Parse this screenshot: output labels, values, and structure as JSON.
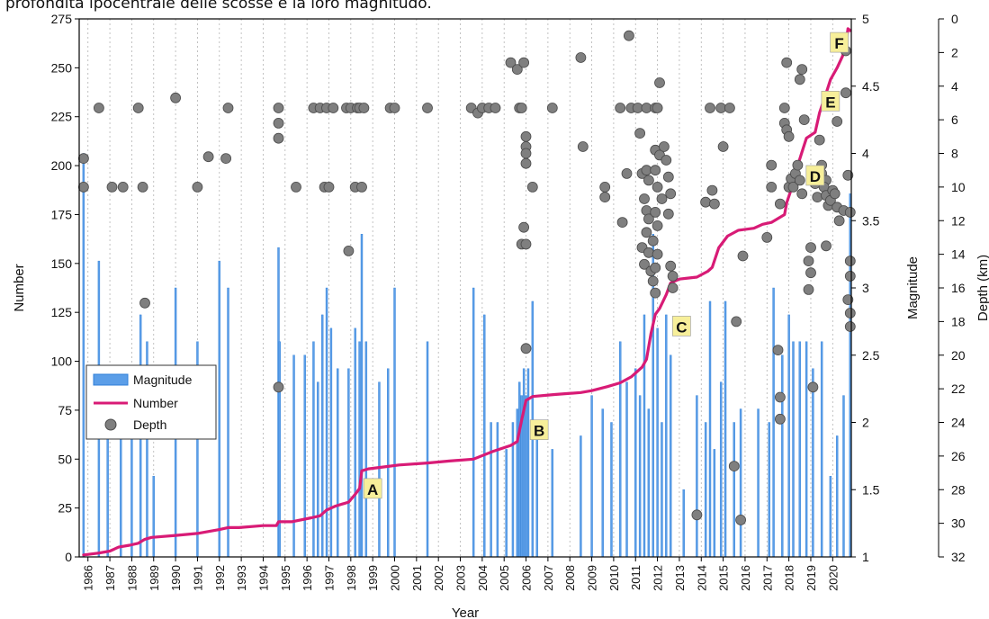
{
  "caption": "profondità ipocentrale delle scosse e la loro magnitudo.",
  "chart_data": {
    "type": "combo",
    "xlabel": "Year",
    "ylabel_left": "Number",
    "ylabel_mid": "Magnitude",
    "ylabel_right": "Depth (km)",
    "xlim": [
      1985.6,
      2020.85
    ],
    "ylim_number": [
      0,
      275
    ],
    "ylim_magnitude": [
      1,
      5
    ],
    "ylim_depth": [
      32,
      0
    ],
    "grid_vertical": true,
    "legend_placement": "left",
    "colors": {
      "magnitude": "#5b9ee8",
      "magnitude_stroke": "#2f7fd8",
      "number": "#d81b76",
      "depth_fill": "#7f7f7f",
      "depth_stroke": "#4a4a4a",
      "label_bg": "#f7ef9a"
    },
    "x_ticks": [
      "1986",
      "1987",
      "1988",
      "1989",
      "1990",
      "1991",
      "1992",
      "1993",
      "1994",
      "1995",
      "1996",
      "1997",
      "1998",
      "1999",
      "2000",
      "2001",
      "2002",
      "2003",
      "2004",
      "2005",
      "2006",
      "2007",
      "2008",
      "2009",
      "2010",
      "2011",
      "2012",
      "2013",
      "2014",
      "2015",
      "2016",
      "2017",
      "2018",
      "2019",
      "2020"
    ],
    "y_ticks_number": [
      0,
      25,
      50,
      75,
      100,
      125,
      150,
      175,
      200,
      225,
      250,
      275
    ],
    "y_ticks_magnitude": [
      "1",
      "1.5",
      "2",
      "2.5",
      "3",
      "3.5",
      "4",
      "4.5",
      "5"
    ],
    "y_ticks_depth": [
      0,
      2,
      4,
      6,
      8,
      10,
      12,
      14,
      16,
      18,
      20,
      22,
      24,
      26,
      28,
      30,
      32
    ],
    "legend": [
      {
        "key": "magnitude",
        "label": "Magnitude"
      },
      {
        "key": "number",
        "label": "Number"
      },
      {
        "key": "depth",
        "label": "Depth"
      }
    ],
    "annotations": [
      {
        "label": "A",
        "x": 1999.0,
        "y": 35
      },
      {
        "label": "B",
        "x": 2006.6,
        "y": 65
      },
      {
        "label": "C",
        "x": 2013.1,
        "y": 118
      },
      {
        "label": "D",
        "x": 2019.2,
        "y": 195
      },
      {
        "label": "E",
        "x": 2019.9,
        "y": 233
      },
      {
        "label": "F",
        "x": 2020.3,
        "y": 263
      }
    ],
    "number_series": [
      [
        1985.8,
        1
      ],
      [
        1986.5,
        2
      ],
      [
        1987.0,
        3
      ],
      [
        1987.4,
        5
      ],
      [
        1987.9,
        6
      ],
      [
        1988.3,
        7
      ],
      [
        1988.6,
        9
      ],
      [
        1988.9,
        10
      ],
      [
        1990.0,
        11
      ],
      [
        1991.0,
        12
      ],
      [
        1992.0,
        14
      ],
      [
        1992.4,
        15
      ],
      [
        1992.9,
        15
      ],
      [
        1994.0,
        16
      ],
      [
        1994.6,
        16
      ],
      [
        1994.7,
        18
      ],
      [
        1995.3,
        18
      ],
      [
        1996.2,
        20
      ],
      [
        1996.6,
        21
      ],
      [
        1996.9,
        24
      ],
      [
        1997.3,
        26
      ],
      [
        1997.9,
        28
      ],
      [
        1998.2,
        32
      ],
      [
        1998.4,
        35
      ],
      [
        1998.5,
        44
      ],
      [
        1998.8,
        45
      ],
      [
        1999.5,
        46
      ],
      [
        2000.2,
        47
      ],
      [
        2001.5,
        48
      ],
      [
        2002.5,
        49
      ],
      [
        2003.6,
        50
      ],
      [
        2004.5,
        54
      ],
      [
        2005.3,
        57
      ],
      [
        2005.6,
        59
      ],
      [
        2005.8,
        70
      ],
      [
        2006.0,
        80
      ],
      [
        2006.3,
        82
      ],
      [
        2007.3,
        83
      ],
      [
        2008.5,
        84
      ],
      [
        2009.0,
        85
      ],
      [
        2009.7,
        87
      ],
      [
        2010.3,
        89
      ],
      [
        2010.8,
        92
      ],
      [
        2011.3,
        97
      ],
      [
        2011.5,
        101
      ],
      [
        2011.7,
        114
      ],
      [
        2011.9,
        124
      ],
      [
        2012.1,
        127
      ],
      [
        2012.4,
        134
      ],
      [
        2012.6,
        140
      ],
      [
        2013.0,
        142
      ],
      [
        2013.8,
        143
      ],
      [
        2014.3,
        146
      ],
      [
        2014.5,
        148
      ],
      [
        2014.8,
        158
      ],
      [
        2015.2,
        164
      ],
      [
        2015.7,
        167
      ],
      [
        2016.4,
        168
      ],
      [
        2016.8,
        170
      ],
      [
        2017.2,
        171
      ],
      [
        2017.8,
        175
      ],
      [
        2017.9,
        181
      ],
      [
        2018.2,
        191
      ],
      [
        2018.4,
        200
      ],
      [
        2018.6,
        207
      ],
      [
        2018.8,
        214
      ],
      [
        2019.2,
        217
      ],
      [
        2019.4,
        227
      ],
      [
        2019.7,
        237
      ],
      [
        2019.9,
        244
      ],
      [
        2020.2,
        250
      ],
      [
        2020.45,
        256
      ],
      [
        2020.6,
        262
      ],
      [
        2020.7,
        270
      ],
      [
        2020.8,
        269
      ]
    ],
    "magnitude_bars": [
      [
        1985.8,
        4.0
      ],
      [
        1986.5,
        3.2
      ],
      [
        1986.9,
        2.4
      ],
      [
        1987.5,
        2.2
      ],
      [
        1988.0,
        2.1
      ],
      [
        1988.4,
        2.8
      ],
      [
        1988.7,
        2.6
      ],
      [
        1989.0,
        1.6
      ],
      [
        1990.0,
        3.0
      ],
      [
        1991.0,
        2.6
      ],
      [
        1992.0,
        3.2
      ],
      [
        1992.4,
        3.0
      ],
      [
        1994.7,
        3.3
      ],
      [
        1994.75,
        2.6
      ],
      [
        1995.4,
        2.5
      ],
      [
        1995.9,
        2.5
      ],
      [
        1996.3,
        2.6
      ],
      [
        1996.5,
        2.3
      ],
      [
        1996.7,
        2.8
      ],
      [
        1996.9,
        3.0
      ],
      [
        1997.1,
        2.7
      ],
      [
        1997.4,
        2.4
      ],
      [
        1997.9,
        2.4
      ],
      [
        1998.2,
        2.7
      ],
      [
        1998.4,
        2.6
      ],
      [
        1998.5,
        3.4
      ],
      [
        1998.7,
        2.6
      ],
      [
        1999.3,
        2.3
      ],
      [
        1999.7,
        2.4
      ],
      [
        2000.0,
        3.0
      ],
      [
        2001.5,
        2.6
      ],
      [
        2003.6,
        3.0
      ],
      [
        2004.1,
        2.8
      ],
      [
        2004.4,
        2.0
      ],
      [
        2004.7,
        2.0
      ],
      [
        2005.1,
        1.8
      ],
      [
        2005.4,
        2.0
      ],
      [
        2005.6,
        2.1
      ],
      [
        2005.7,
        2.3
      ],
      [
        2005.8,
        2.2
      ],
      [
        2005.9,
        2.4
      ],
      [
        2006.0,
        2.2
      ],
      [
        2006.1,
        2.4
      ],
      [
        2006.3,
        2.9
      ],
      [
        2006.5,
        2.0
      ],
      [
        2007.2,
        1.8
      ],
      [
        2008.5,
        1.9
      ],
      [
        2009.0,
        2.2
      ],
      [
        2009.5,
        2.1
      ],
      [
        2009.9,
        2.0
      ],
      [
        2010.3,
        2.6
      ],
      [
        2010.6,
        2.3
      ],
      [
        2011.0,
        2.4
      ],
      [
        2011.2,
        2.2
      ],
      [
        2011.4,
        2.8
      ],
      [
        2011.6,
        2.1
      ],
      [
        2011.8,
        3.4
      ],
      [
        2012.0,
        2.7
      ],
      [
        2012.2,
        2.0
      ],
      [
        2012.4,
        2.8
      ],
      [
        2012.6,
        2.5
      ],
      [
        2013.2,
        1.5
      ],
      [
        2013.8,
        2.2
      ],
      [
        2014.2,
        2.0
      ],
      [
        2014.4,
        2.9
      ],
      [
        2014.6,
        1.8
      ],
      [
        2014.9,
        2.3
      ],
      [
        2015.1,
        2.9
      ],
      [
        2015.5,
        2.0
      ],
      [
        2015.8,
        2.1
      ],
      [
        2016.6,
        2.1
      ],
      [
        2017.1,
        2.0
      ],
      [
        2017.3,
        3.0
      ],
      [
        2017.7,
        2.5
      ],
      [
        2018.0,
        2.8
      ],
      [
        2018.2,
        2.6
      ],
      [
        2018.5,
        2.6
      ],
      [
        2018.8,
        2.6
      ],
      [
        2019.1,
        2.4
      ],
      [
        2019.5,
        2.6
      ],
      [
        2019.9,
        1.6
      ],
      [
        2020.2,
        1.9
      ],
      [
        2020.5,
        2.2
      ],
      [
        2020.8,
        3.7
      ]
    ],
    "depth_points": [
      [
        1985.8,
        8.3
      ],
      [
        1985.8,
        10.0
      ],
      [
        1986.5,
        5.3
      ],
      [
        1987.1,
        10.0
      ],
      [
        1987.6,
        10.0
      ],
      [
        1988.3,
        5.3
      ],
      [
        1988.5,
        10.0
      ],
      [
        1988.6,
        16.9
      ],
      [
        1990.0,
        4.7
      ],
      [
        1991.0,
        10.0
      ],
      [
        1991.5,
        8.2
      ],
      [
        1992.3,
        8.3
      ],
      [
        1992.4,
        5.3
      ],
      [
        1994.7,
        5.3
      ],
      [
        1994.7,
        6.2
      ],
      [
        1994.7,
        7.1
      ],
      [
        1994.7,
        21.9
      ],
      [
        1995.5,
        10.0
      ],
      [
        1996.3,
        5.3
      ],
      [
        1996.6,
        5.3
      ],
      [
        1996.8,
        10.0
      ],
      [
        1996.9,
        5.3
      ],
      [
        1997.0,
        10.0
      ],
      [
        1997.2,
        5.3
      ],
      [
        1997.8,
        5.3
      ],
      [
        1997.9,
        13.8
      ],
      [
        1998.0,
        5.3
      ],
      [
        1998.2,
        10.0
      ],
      [
        1998.3,
        5.3
      ],
      [
        1998.4,
        5.3
      ],
      [
        1998.5,
        10.0
      ],
      [
        1998.6,
        5.3
      ],
      [
        1999.8,
        5.3
      ],
      [
        2000.0,
        5.3
      ],
      [
        2001.5,
        5.3
      ],
      [
        2003.5,
        5.3
      ],
      [
        2003.8,
        5.6
      ],
      [
        2004.0,
        5.3
      ],
      [
        2004.3,
        5.3
      ],
      [
        2004.6,
        5.3
      ],
      [
        2005.3,
        2.6
      ],
      [
        2005.6,
        3.0
      ],
      [
        2005.7,
        5.3
      ],
      [
        2005.8,
        5.3
      ],
      [
        2005.9,
        2.6
      ],
      [
        2006.0,
        7.0
      ],
      [
        2006.0,
        7.6
      ],
      [
        2006.0,
        8.0
      ],
      [
        2006.0,
        8.6
      ],
      [
        2005.9,
        12.4
      ],
      [
        2005.8,
        13.4
      ],
      [
        2006.0,
        13.4
      ],
      [
        2006.0,
        19.6
      ],
      [
        2006.3,
        10.0
      ],
      [
        2007.2,
        5.3
      ],
      [
        2008.5,
        2.3
      ],
      [
        2008.6,
        7.6
      ],
      [
        2009.6,
        10.0
      ],
      [
        2009.6,
        10.6
      ],
      [
        2010.3,
        5.3
      ],
      [
        2010.4,
        12.1
      ],
      [
        2010.6,
        9.2
      ],
      [
        2010.7,
        1.0
      ],
      [
        2010.8,
        5.3
      ],
      [
        2011.1,
        5.3
      ],
      [
        2011.2,
        6.8
      ],
      [
        2011.5,
        5.3
      ],
      [
        2011.3,
        9.2
      ],
      [
        2011.5,
        9.0
      ],
      [
        2011.6,
        9.6
      ],
      [
        2011.4,
        10.7
      ],
      [
        2011.5,
        11.4
      ],
      [
        2011.6,
        11.9
      ],
      [
        2011.5,
        12.7
      ],
      [
        2011.3,
        13.6
      ],
      [
        2011.6,
        13.9
      ],
      [
        2011.4,
        14.6
      ],
      [
        2011.7,
        15.0
      ],
      [
        2011.9,
        5.3
      ],
      [
        2012.0,
        5.3
      ],
      [
        2012.1,
        3.8
      ],
      [
        2011.9,
        7.8
      ],
      [
        2012.1,
        8.1
      ],
      [
        2012.3,
        7.6
      ],
      [
        2011.9,
        9.0
      ],
      [
        2012.0,
        10.0
      ],
      [
        2012.2,
        10.7
      ],
      [
        2011.9,
        11.5
      ],
      [
        2012.0,
        12.3
      ],
      [
        2011.8,
        13.2
      ],
      [
        2012.0,
        14.0
      ],
      [
        2011.9,
        14.8
      ],
      [
        2011.8,
        15.6
      ],
      [
        2011.9,
        16.3
      ],
      [
        2012.4,
        8.4
      ],
      [
        2012.5,
        9.4
      ],
      [
        2012.6,
        10.4
      ],
      [
        2012.5,
        11.6
      ],
      [
        2012.6,
        14.7
      ],
      [
        2012.7,
        15.3
      ],
      [
        2012.7,
        16.0
      ],
      [
        2013.8,
        29.5
      ],
      [
        2014.2,
        10.9
      ],
      [
        2014.4,
        5.3
      ],
      [
        2014.5,
        10.2
      ],
      [
        2014.6,
        11.0
      ],
      [
        2014.9,
        5.3
      ],
      [
        2015.0,
        7.6
      ],
      [
        2015.3,
        5.3
      ],
      [
        2015.6,
        18.0
      ],
      [
        2015.5,
        26.6
      ],
      [
        2015.8,
        29.8
      ],
      [
        2015.9,
        14.1
      ],
      [
        2017.0,
        13.0
      ],
      [
        2017.2,
        8.7
      ],
      [
        2017.2,
        10.0
      ],
      [
        2017.5,
        19.7
      ],
      [
        2017.6,
        11.0
      ],
      [
        2017.6,
        22.5
      ],
      [
        2017.6,
        23.8
      ],
      [
        2017.8,
        5.3
      ],
      [
        2017.8,
        6.2
      ],
      [
        2017.9,
        6.6
      ],
      [
        2018.0,
        7.0
      ],
      [
        2018.0,
        10.0
      ],
      [
        2017.9,
        2.6
      ],
      [
        2018.1,
        9.5
      ],
      [
        2018.2,
        10.0
      ],
      [
        2018.3,
        9.2
      ],
      [
        2018.4,
        8.7
      ],
      [
        2018.5,
        9.6
      ],
      [
        2018.6,
        10.4
      ],
      [
        2018.5,
        3.6
      ],
      [
        2018.6,
        3.0
      ],
      [
        2018.7,
        6.0
      ],
      [
        2018.9,
        14.4
      ],
      [
        2019.0,
        15.1
      ],
      [
        2018.9,
        16.1
      ],
      [
        2019.0,
        13.6
      ],
      [
        2019.1,
        21.9
      ],
      [
        2019.2,
        9.8
      ],
      [
        2019.3,
        10.6
      ],
      [
        2019.5,
        8.7
      ],
      [
        2019.5,
        9.2
      ],
      [
        2019.7,
        9.6
      ],
      [
        2019.6,
        10.0
      ],
      [
        2019.7,
        10.5
      ],
      [
        2019.8,
        11.1
      ],
      [
        2019.9,
        10.8
      ],
      [
        2020.0,
        10.2
      ],
      [
        2020.1,
        10.4
      ],
      [
        2020.2,
        11.2
      ],
      [
        2020.2,
        6.1
      ],
      [
        2019.4,
        7.2
      ],
      [
        2020.3,
        12.0
      ],
      [
        2019.7,
        13.5
      ],
      [
        2020.5,
        11.4
      ],
      [
        2020.6,
        1.9
      ],
      [
        2020.6,
        4.4
      ],
      [
        2020.7,
        9.3
      ],
      [
        2020.8,
        11.5
      ],
      [
        2020.8,
        14.4
      ],
      [
        2020.8,
        15.3
      ],
      [
        2020.7,
        16.7
      ],
      [
        2020.8,
        17.5
      ],
      [
        2020.8,
        18.3
      ]
    ]
  }
}
